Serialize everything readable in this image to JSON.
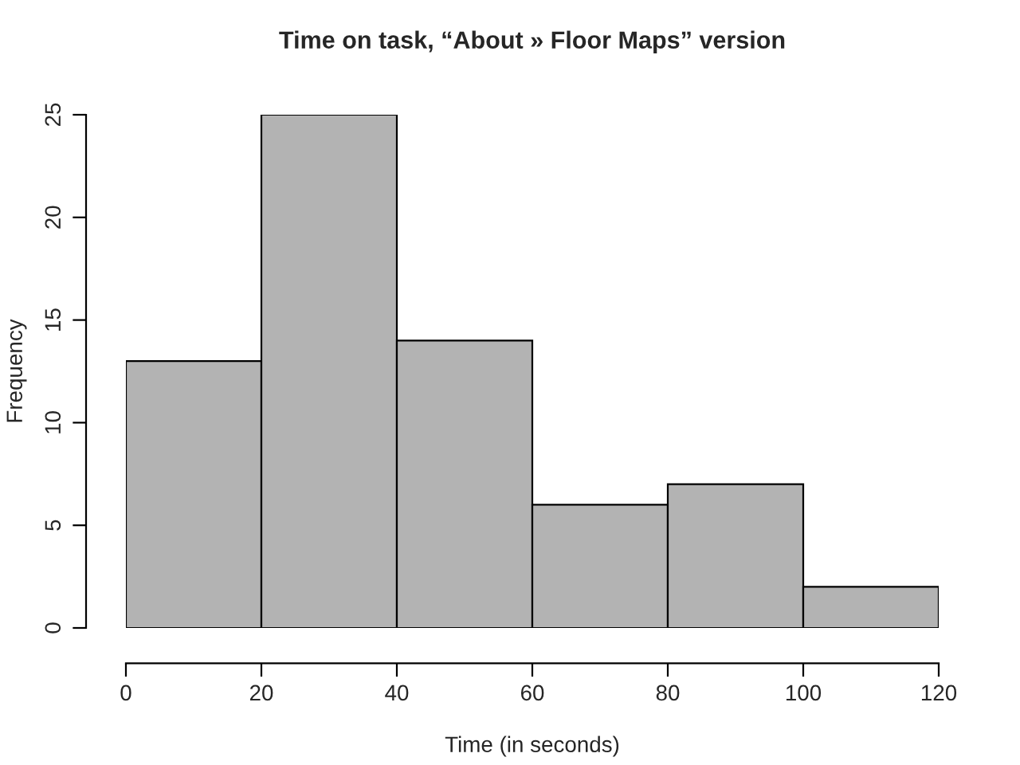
{
  "chart_data": {
    "type": "histogram",
    "title": "Time on task, “About » Floor Maps” version",
    "xlabel": "Time (in seconds)",
    "ylabel": "Frequency",
    "bins": [
      0,
      20,
      40,
      60,
      80,
      100,
      120
    ],
    "values": [
      13,
      25,
      14,
      6,
      7,
      2
    ],
    "color": "#b3b3b3",
    "xlim": [
      0,
      120
    ],
    "xticks": [
      0,
      20,
      40,
      60,
      80,
      100,
      120
    ],
    "ylim": [
      0,
      25
    ],
    "yticks": [
      0,
      5,
      10,
      15,
      20,
      25
    ],
    "grid": false,
    "legend": false
  }
}
